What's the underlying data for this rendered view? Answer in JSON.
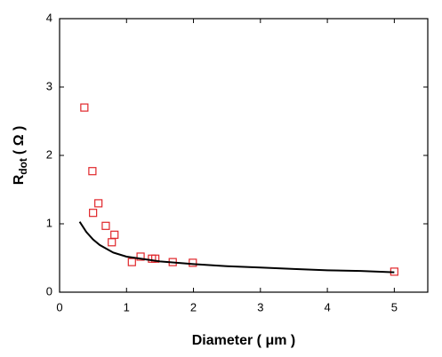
{
  "chart_data": {
    "type": "scatter",
    "xlabel": "Diameter ( μm )",
    "ylabel": {
      "base": "R",
      "subscript": "dot",
      "unit": "( Ω )"
    },
    "xlim": [
      0,
      5.5
    ],
    "ylim": [
      0,
      4
    ],
    "xticks": [
      0,
      1,
      2,
      3,
      4,
      5
    ],
    "yticks": [
      0,
      1,
      2,
      3,
      4
    ],
    "mirror_ticks": true,
    "series": [
      {
        "color": "#e0262a",
        "marker": "square",
        "x": [
          0.37,
          0.49,
          0.5,
          0.58,
          0.69,
          0.78,
          0.82,
          1.08,
          1.21,
          1.38,
          1.43,
          1.69,
          1.99,
          5.0
        ],
        "values": [
          2.7,
          1.77,
          1.16,
          1.3,
          0.97,
          0.73,
          0.84,
          0.44,
          0.52,
          0.49,
          0.49,
          0.44,
          0.43,
          0.3
        ]
      },
      {
        "color": "#000000",
        "style": "line",
        "x": [
          0.3,
          0.4,
          0.5,
          0.6,
          0.8,
          1,
          1.5,
          2,
          2.5,
          3,
          3.5,
          4,
          4.5,
          5
        ],
        "values": [
          1.03,
          0.88,
          0.77,
          0.69,
          0.58,
          0.52,
          0.45,
          0.41,
          0.38,
          0.36,
          0.34,
          0.32,
          0.31,
          0.29
        ]
      }
    ]
  }
}
